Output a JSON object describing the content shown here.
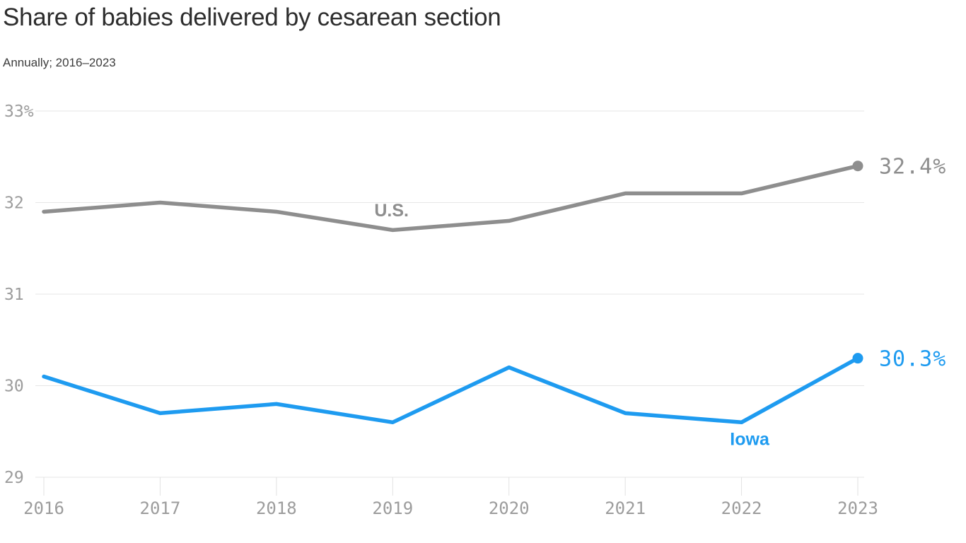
{
  "header": {
    "title": "Share of babies delivered by cesarean section",
    "subtitle": "Annually; 2016–2023"
  },
  "chart_data": {
    "type": "line",
    "x": [
      2016,
      2017,
      2018,
      2019,
      2020,
      2021,
      2022,
      2023
    ],
    "series": [
      {
        "name": "U.S.",
        "values": [
          31.9,
          32.0,
          31.9,
          31.7,
          31.8,
          32.1,
          32.1,
          32.4
        ],
        "color": "#8e8e8e",
        "end_label": "32.4%",
        "name_label_at": {
          "x": 2018.99,
          "y": 31.92
        }
      },
      {
        "name": "Iowa",
        "values": [
          30.1,
          29.7,
          29.8,
          29.6,
          30.2,
          29.7,
          29.6,
          30.3
        ],
        "color": "#1e9bf0",
        "end_label": "30.3%",
        "name_label_at": {
          "x": 2022.07,
          "y": 29.42
        }
      }
    ],
    "title": "Share of babies delivered by cesarean section",
    "subtitle": "Annually; 2016–2023",
    "xlabel": "",
    "ylabel": "",
    "ylim": [
      29,
      33
    ],
    "ytick_values": [
      33,
      32,
      31,
      30,
      29
    ],
    "ytick_labels": [
      "33%",
      "32",
      "31",
      "30",
      "29"
    ],
    "xtick_labels": [
      "2016",
      "2017",
      "2018",
      "2019",
      "2020",
      "2021",
      "2022",
      "2023"
    ],
    "grid": true,
    "legend_position": "inline-labels"
  },
  "colors": {
    "us_line": "#8e8e8e",
    "iowa_line": "#1e9bf0",
    "grid": "#e6e6e6",
    "tick_text": "#9c9c9c",
    "title_text": "#2d2d2d"
  }
}
